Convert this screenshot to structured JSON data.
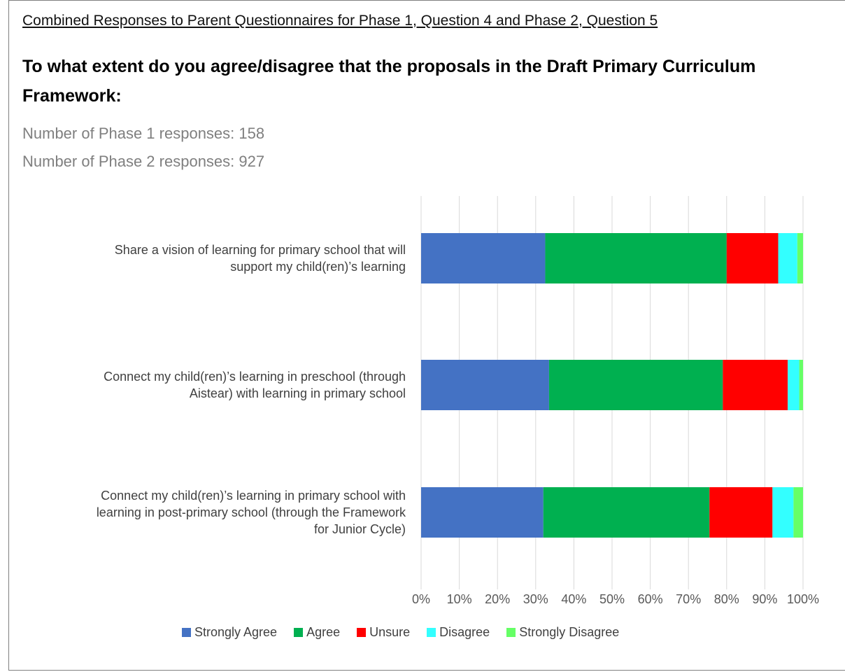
{
  "caption": "Combined Responses to Parent Questionnaires for Phase 1, Question 4 and Phase 2, Question 5",
  "question": "To what extent do you agree/disagree that the proposals in the Draft Primary Curriculum Framework:",
  "phase1_count": "Number of Phase 1 responses: 158",
  "phase2_count": "Number of Phase 2 responses: 927",
  "chart_data": {
    "type": "bar",
    "orientation": "horizontal",
    "stacked": "percent",
    "categories": [
      "Share a vision of learning for primary school that will support my child(ren)’s learning",
      "Connect my child(ren)’s learning in preschool (through Aistear) with learning in primary school",
      "Connect my child(ren)’s learning in primary school with learning in post-primary school (through the Framework for Junior Cycle)"
    ],
    "category_lines": [
      [
        "Share a vision of learning for primary school that will",
        "support my child(ren)’s learning"
      ],
      [
        "Connect my child(ren)’s learning in preschool (through",
        "Aistear) with learning in primary school"
      ],
      [
        "Connect my child(ren)’s learning in primary school with",
        "learning in post-primary school (through the Framework",
        "for Junior Cycle)"
      ]
    ],
    "series": [
      {
        "name": "Strongly Agree",
        "color": "#4472C4",
        "values": [
          32.5,
          33.5,
          32.0
        ]
      },
      {
        "name": "Agree",
        "color": "#00B050",
        "values": [
          47.5,
          45.5,
          43.5
        ]
      },
      {
        "name": "Unsure",
        "color": "#FF0000",
        "values": [
          13.5,
          17.0,
          16.5
        ]
      },
      {
        "name": "Disagree",
        "color": "#33FFFF",
        "values": [
          5.0,
          3.0,
          5.5
        ]
      },
      {
        "name": "Strongly Disagree",
        "color": "#66FF66",
        "values": [
          1.5,
          1.0,
          2.5
        ]
      }
    ],
    "xticks": [
      "0%",
      "10%",
      "20%",
      "30%",
      "40%",
      "50%",
      "60%",
      "70%",
      "80%",
      "90%",
      "100%"
    ],
    "xlim": [
      0,
      100
    ],
    "grid": true,
    "legend": "bottom"
  }
}
